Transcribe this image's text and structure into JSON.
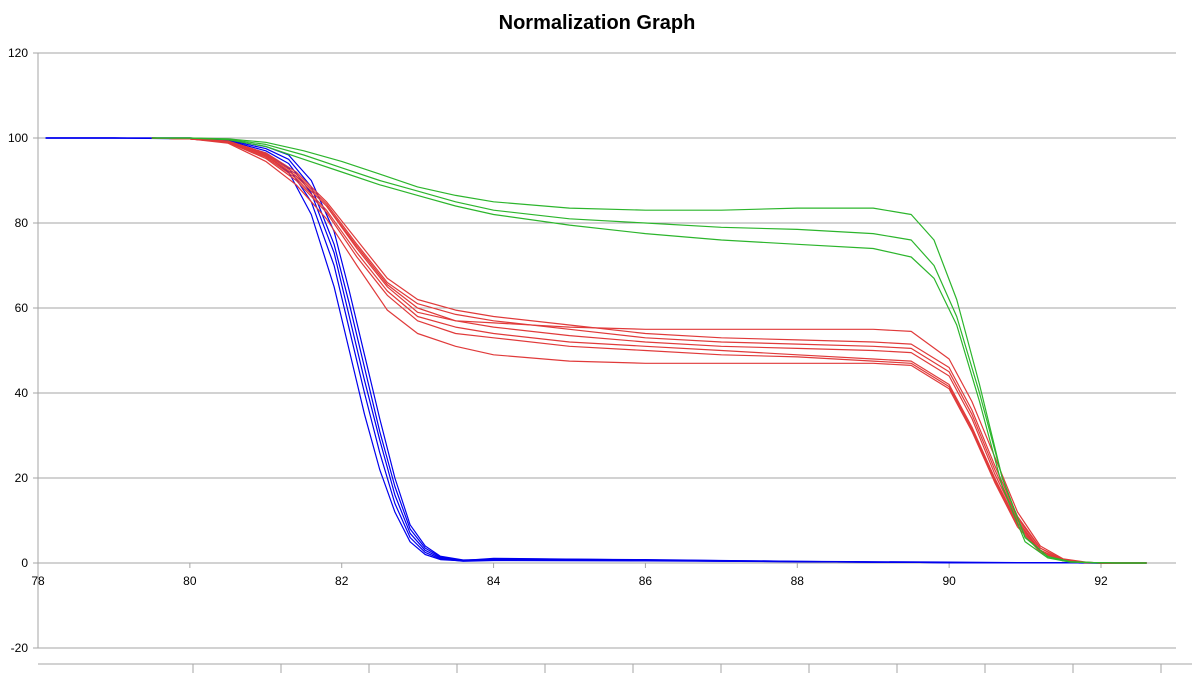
{
  "chart_data": {
    "type": "line",
    "title": "Normalization Graph",
    "xlabel": "",
    "ylabel": "",
    "xlim": [
      78,
      92.6
    ],
    "ylim": [
      -20,
      120
    ],
    "x_ticks": [
      78,
      80,
      82,
      84,
      86,
      88,
      90,
      92
    ],
    "y_ticks": [
      -20,
      0,
      20,
      40,
      60,
      80,
      100,
      120
    ],
    "grid": "horizontal",
    "legend": "none",
    "colors": {
      "blue": "#0000ee",
      "red": "#e03a3a",
      "green": "#2cb52c",
      "grid": "#a6a6a6",
      "axis": "#a6a6a6"
    },
    "series": [
      {
        "name": "blue-1",
        "color": "blue",
        "x": [
          78.1,
          79,
          80,
          80.5,
          81,
          81.3,
          81.6,
          81.9,
          82.1,
          82.3,
          82.5,
          82.7,
          82.9,
          83.1,
          83.3,
          83.6,
          84,
          86,
          88,
          89,
          90,
          91,
          92,
          92.6
        ],
        "y": [
          100,
          100,
          99.8,
          99,
          96,
          92,
          82,
          65,
          50,
          35,
          22,
          12,
          5,
          2,
          0.8,
          0.5,
          1,
          0.8,
          0.4,
          0.3,
          0.2,
          0.1,
          0,
          0
        ]
      },
      {
        "name": "blue-2",
        "color": "blue",
        "x": [
          78.1,
          79,
          80,
          80.5,
          81,
          81.3,
          81.6,
          81.9,
          82.1,
          82.3,
          82.5,
          82.7,
          82.9,
          83.1,
          83.3,
          83.6,
          84,
          86,
          88,
          89,
          90,
          91,
          92,
          92.6
        ],
        "y": [
          100,
          100,
          99.9,
          99.2,
          96.5,
          93,
          85,
          70,
          55,
          40,
          26,
          14,
          6,
          2.5,
          1,
          0.4,
          0.6,
          0.5,
          0.3,
          0.2,
          0.1,
          0.1,
          0,
          0
        ]
      },
      {
        "name": "blue-3",
        "color": "blue",
        "x": [
          78.1,
          79,
          80,
          80.5,
          81,
          81.3,
          81.6,
          81.9,
          82.1,
          82.3,
          82.5,
          82.7,
          82.9,
          83.1,
          83.3,
          83.6,
          84,
          86,
          88,
          89,
          90,
          91,
          92,
          92.6
        ],
        "y": [
          100,
          100,
          99.9,
          99.4,
          97,
          94,
          87,
          73,
          58,
          43,
          29,
          16,
          7,
          3,
          1.2,
          0.5,
          0.8,
          0.6,
          0.3,
          0.2,
          0.1,
          0.1,
          0,
          0
        ]
      },
      {
        "name": "blue-4",
        "color": "blue",
        "x": [
          78.1,
          79,
          80,
          80.5,
          81,
          81.3,
          81.6,
          81.9,
          82.1,
          82.3,
          82.5,
          82.7,
          82.9,
          83.1,
          83.3,
          83.6,
          84,
          86,
          88,
          89,
          90,
          91,
          92,
          92.6
        ],
        "y": [
          100,
          100,
          100,
          99.5,
          97.5,
          95,
          88.5,
          75,
          61,
          46,
          31,
          18,
          8,
          3.5,
          1.4,
          0.6,
          1.1,
          0.7,
          0.4,
          0.2,
          0.1,
          0.1,
          0,
          0
        ]
      },
      {
        "name": "blue-5",
        "color": "blue",
        "x": [
          78.1,
          79,
          80,
          80.5,
          81,
          81.3,
          81.6,
          81.9,
          82.1,
          82.3,
          82.5,
          82.7,
          82.9,
          83.1,
          83.3,
          83.6,
          84,
          86,
          88,
          89,
          90,
          91,
          92,
          92.6
        ],
        "y": [
          100,
          100,
          100,
          99.6,
          98,
          96,
          90,
          78,
          64,
          49,
          34,
          20,
          9,
          4,
          1.6,
          0.7,
          0.9,
          0.6,
          0.3,
          0.2,
          0.1,
          0.1,
          0,
          0
        ]
      },
      {
        "name": "red-1",
        "color": "red",
        "x": [
          79.5,
          80,
          80.5,
          81,
          81.4,
          81.8,
          82.2,
          82.6,
          83,
          83.5,
          84,
          85,
          86,
          87,
          88,
          89,
          89.5,
          90,
          90.3,
          90.6,
          90.9,
          91.2,
          91.5,
          91.8,
          92,
          92.6
        ],
        "y": [
          100,
          99.8,
          99.2,
          96,
          91,
          84,
          74,
          65,
          59,
          57,
          56.5,
          55.5,
          55,
          55,
          55,
          55,
          54.5,
          48,
          38,
          25,
          12,
          4,
          1,
          0.2,
          0,
          0
        ]
      },
      {
        "name": "red-2",
        "color": "red",
        "x": [
          79.5,
          80,
          80.5,
          81,
          81.4,
          81.8,
          82.2,
          82.6,
          83,
          83.5,
          84,
          85,
          86,
          87,
          88,
          89,
          89.5,
          90,
          90.3,
          90.6,
          90.9,
          91.2,
          91.5,
          91.8,
          92,
          92.6
        ],
        "y": [
          100,
          99.8,
          99.3,
          96.5,
          92,
          85,
          76,
          67,
          62,
          59.5,
          58,
          56,
          54,
          53,
          52.5,
          52,
          51.5,
          46,
          36,
          23,
          11,
          3.5,
          0.8,
          0.1,
          0,
          0
        ]
      },
      {
        "name": "red-3",
        "color": "red",
        "x": [
          79.5,
          80,
          80.5,
          81,
          81.4,
          81.8,
          82.2,
          82.6,
          83,
          83.5,
          84,
          85,
          86,
          87,
          88,
          89,
          89.5,
          90,
          90.3,
          90.6,
          90.9,
          91.2,
          91.5,
          91.8,
          92,
          92.6
        ],
        "y": [
          100,
          99.8,
          99.2,
          96.2,
          91.5,
          84.5,
          75,
          66,
          61,
          58.5,
          57,
          55,
          53,
          52,
          51.5,
          51,
          50.5,
          45,
          35,
          22,
          10.5,
          3.5,
          0.8,
          0.1,
          0,
          0
        ]
      },
      {
        "name": "red-4",
        "color": "red",
        "x": [
          79.5,
          80,
          80.5,
          81,
          81.4,
          81.8,
          82.2,
          82.6,
          83,
          83.5,
          84,
          85,
          86,
          87,
          88,
          89,
          89.5,
          90,
          90.3,
          90.6,
          90.9,
          91.2,
          91.5,
          91.8,
          92,
          92.6
        ],
        "y": [
          100,
          99.8,
          99.1,
          95.8,
          91,
          84,
          74.5,
          65.5,
          60,
          57,
          55.5,
          53.5,
          52,
          51,
          50.5,
          50,
          49.5,
          44,
          34,
          21,
          10,
          3,
          0.7,
          0.1,
          0,
          0
        ]
      },
      {
        "name": "red-5",
        "color": "red",
        "x": [
          79.5,
          80,
          80.5,
          81,
          81.4,
          81.8,
          82.2,
          82.6,
          83,
          83.5,
          84,
          85,
          86,
          87,
          88,
          89,
          89.5,
          90,
          90.3,
          90.6,
          90.9,
          91.2,
          91.5,
          91.8,
          92,
          92.6
        ],
        "y": [
          100,
          99.8,
          99,
          95.5,
          90.5,
          83,
          73,
          64,
          58,
          55.5,
          54,
          52,
          51,
          50,
          49,
          48,
          47.5,
          42,
          32,
          20,
          9.5,
          3,
          0.6,
          0.1,
          0,
          0
        ]
      },
      {
        "name": "red-6",
        "color": "red",
        "x": [
          79.5,
          80,
          80.5,
          81,
          81.4,
          81.8,
          82.2,
          82.6,
          83,
          83.5,
          84,
          85,
          86,
          87,
          88,
          89,
          89.5,
          90,
          90.3,
          90.6,
          90.9,
          91.2,
          91.5,
          91.8,
          92,
          92.6
        ],
        "y": [
          100,
          99.8,
          99,
          95.2,
          90,
          82.5,
          72,
          63,
          57,
          54,
          53,
          51,
          50,
          49,
          48.5,
          47.5,
          47,
          41.5,
          31.5,
          19.5,
          9,
          2.8,
          0.6,
          0.1,
          0,
          0
        ]
      },
      {
        "name": "red-7",
        "color": "red",
        "x": [
          79.5,
          80,
          80.5,
          81,
          81.4,
          81.8,
          82.2,
          82.6,
          83,
          83.5,
          84,
          85,
          86,
          87,
          88,
          89,
          89.5,
          90,
          90.3,
          90.6,
          90.9,
          91.2,
          91.5,
          91.8,
          92,
          92.6
        ],
        "y": [
          100,
          99.8,
          98.8,
          94.5,
          89,
          81,
          70,
          59.5,
          54,
          51,
          49,
          47.5,
          47,
          47,
          47,
          47,
          46.5,
          41,
          31,
          19,
          8.5,
          2.5,
          0.5,
          0.1,
          0,
          0
        ]
      },
      {
        "name": "green-1",
        "color": "green",
        "x": [
          79.5,
          80,
          80.5,
          81,
          81.5,
          82,
          82.5,
          83,
          83.5,
          84,
          85,
          86,
          87,
          88,
          89,
          89.5,
          89.8,
          90.1,
          90.4,
          90.7,
          91,
          91.3,
          91.6,
          91.9,
          92.2,
          92.6
        ],
        "y": [
          100,
          100,
          99.8,
          99,
          97,
          94.5,
          91.5,
          88.5,
          86.5,
          85,
          83.5,
          83,
          83,
          83.5,
          83.5,
          82,
          76,
          62,
          42,
          20,
          6,
          1.5,
          0.3,
          0.1,
          0,
          0
        ]
      },
      {
        "name": "green-2",
        "color": "green",
        "x": [
          79.5,
          80,
          80.5,
          81,
          81.5,
          82,
          82.5,
          83,
          83.5,
          84,
          85,
          86,
          87,
          88,
          89,
          89.5,
          89.8,
          90.1,
          90.4,
          90.7,
          91,
          91.3,
          91.6,
          91.9,
          92.2,
          92.6
        ],
        "y": [
          100,
          100,
          99.7,
          98.5,
          96,
          93,
          90,
          87.5,
          85,
          83,
          81,
          80,
          79,
          78.5,
          77.5,
          76,
          70,
          58,
          40,
          20,
          6,
          1.5,
          0.3,
          0.1,
          0,
          0
        ]
      },
      {
        "name": "green-3",
        "color": "green",
        "x": [
          79.5,
          80,
          80.5,
          81,
          81.5,
          82,
          82.5,
          83,
          83.5,
          84,
          85,
          86,
          87,
          88,
          89,
          89.5,
          89.8,
          90.1,
          90.4,
          90.7,
          91,
          91.3,
          91.6,
          91.9,
          92.2,
          92.6
        ],
        "y": [
          100,
          100,
          99.6,
          98,
          95,
          92,
          89,
          86.5,
          84,
          82,
          79.5,
          77.5,
          76,
          75,
          74,
          72,
          67,
          56,
          38,
          18,
          5,
          1.2,
          0.2,
          0.1,
          0,
          0
        ]
      }
    ]
  }
}
